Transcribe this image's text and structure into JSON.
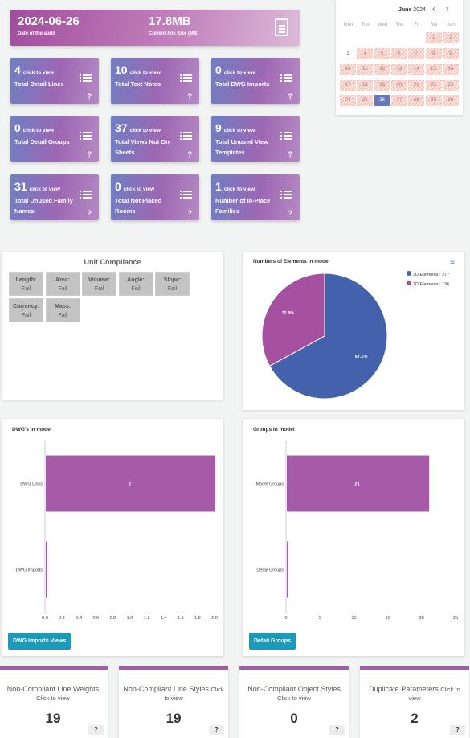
{
  "hero": {
    "date_value": "2024-06-26",
    "date_label": "Date of the audit",
    "size_value": "17.8MB",
    "size_label": "Current File Size (MB)",
    "icon": "document-icon"
  },
  "tiles": [
    {
      "count": "4",
      "cta": "click to view",
      "title": "Total Detail Lines"
    },
    {
      "count": "10",
      "cta": "click to view",
      "title": "Total Text Notes"
    },
    {
      "count": "0",
      "cta": "click to view",
      "title": "Total DWG Imports"
    },
    {
      "count": "0",
      "cta": "click to view",
      "title": "Total Detail Groups"
    },
    {
      "count": "37",
      "cta": "click to view",
      "title": "Total Views Not On Sheets"
    },
    {
      "count": "9",
      "cta": "click to view",
      "title": "Total Unused View Templates"
    },
    {
      "count": "31",
      "cta": "click to view",
      "title": "Total Unused Family Names"
    },
    {
      "count": "0",
      "cta": "click to view",
      "title": "Total Not Placed Rooms"
    },
    {
      "count": "1",
      "cta": "click to view",
      "title": "Number of In-Place Families"
    }
  ],
  "tile_help": "?",
  "calendar": {
    "month": "June",
    "year": "2024",
    "prev": "‹",
    "next": "›",
    "days": [
      "Mon",
      "Tue",
      "Wed",
      "Thu",
      "Fri",
      "Sat",
      "Sun"
    ],
    "dates": [
      "1",
      "2",
      "3",
      "4",
      "5",
      "6",
      "7",
      "8",
      "9",
      "10",
      "11",
      "12",
      "13",
      "14",
      "15",
      "16",
      "17",
      "18",
      "19",
      "20",
      "21",
      "22",
      "23",
      "24",
      "25",
      "26",
      "27",
      "28",
      "29",
      "30"
    ],
    "today": "26"
  },
  "unit": {
    "title": "Unit Compliance",
    "items": [
      {
        "label": "Length:",
        "value": "Fail"
      },
      {
        "label": "Area:",
        "value": "Fail"
      },
      {
        "label": "Volume:",
        "value": "Fail"
      },
      {
        "label": "Angle:",
        "value": "Fail"
      },
      {
        "label": "Slope:",
        "value": "Fail"
      },
      {
        "label": "Currency:",
        "value": "Fail"
      },
      {
        "label": "Mass:",
        "value": "Fail"
      }
    ]
  },
  "pie": {
    "title": "Numbers of Elements In model",
    "menu": "≡",
    "legend": [
      "3D Elements : 277",
      "2D Elements : 136"
    ],
    "labels": [
      "67.1%",
      "32.9%"
    ]
  },
  "dwg": {
    "title": "DWG's In model",
    "cats": [
      "DWG Links",
      "DWG Imports"
    ],
    "value_label": "2",
    "ticks": [
      "0.0",
      "0.2",
      "0.4",
      "0.6",
      "0.8",
      "1.0",
      "1.2",
      "1.4",
      "1.6",
      "1.8",
      "2.0"
    ],
    "button": "DWG Imports Views"
  },
  "groups": {
    "title": "Groups In model",
    "cats": [
      "Model Groups",
      "Detail Groups"
    ],
    "value_label": "21",
    "ticks": [
      "0",
      "5",
      "10",
      "15",
      "20",
      "25"
    ],
    "button": "Detail Groups"
  },
  "chart_data": [
    {
      "type": "pie",
      "title": "Numbers of Elements In model",
      "labels": [
        "3D Elements",
        "2D Elements"
      ],
      "values": [
        277,
        136
      ],
      "colors": [
        "#4462ab",
        "#a4509f"
      ]
    },
    {
      "type": "bar",
      "title": "DWG's In model",
      "categories": [
        "DWG Links",
        "DWG Imports"
      ],
      "values": [
        2,
        0
      ],
      "xlim": [
        0,
        2
      ],
      "color": "#a55ba8"
    },
    {
      "type": "bar",
      "title": "Groups In model",
      "categories": [
        "Model Groups",
        "Detail Groups"
      ],
      "values": [
        21,
        0
      ],
      "xlim": [
        0,
        25
      ],
      "color": "#a55ba8"
    }
  ],
  "bottom": [
    {
      "title": "Non-Compliant Line Weights",
      "cta": "Click to view",
      "value": "19"
    },
    {
      "title": "Non-Compliant Line Styles",
      "cta": "Click to view",
      "value": "19"
    },
    {
      "title": "Non-Compliant Object Styles",
      "cta": "Click to view",
      "value": "0"
    },
    {
      "title": "Duplicate Parameters",
      "cta": "Click to view",
      "value": "2"
    }
  ],
  "help": "?"
}
